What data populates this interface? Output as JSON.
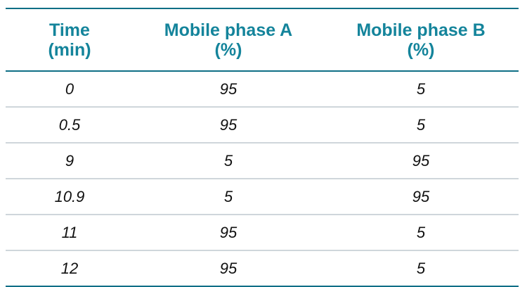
{
  "table": {
    "headers": [
      [
        "Time",
        "(min)"
      ],
      [
        "Mobile phase A",
        "(%)"
      ],
      [
        "Mobile phase B",
        "(%)"
      ]
    ],
    "rows": [
      [
        "0",
        "95",
        "5"
      ],
      [
        "0.5",
        "95",
        "5"
      ],
      [
        "9",
        "5",
        "95"
      ],
      [
        "10.9",
        "5",
        "95"
      ],
      [
        "11",
        "95",
        "5"
      ],
      [
        "12",
        "95",
        "5"
      ]
    ]
  },
  "colors": {
    "header_text": "#14849b",
    "rule_major": "#0f6f86",
    "rule_minor": "#cfd6db"
  }
}
